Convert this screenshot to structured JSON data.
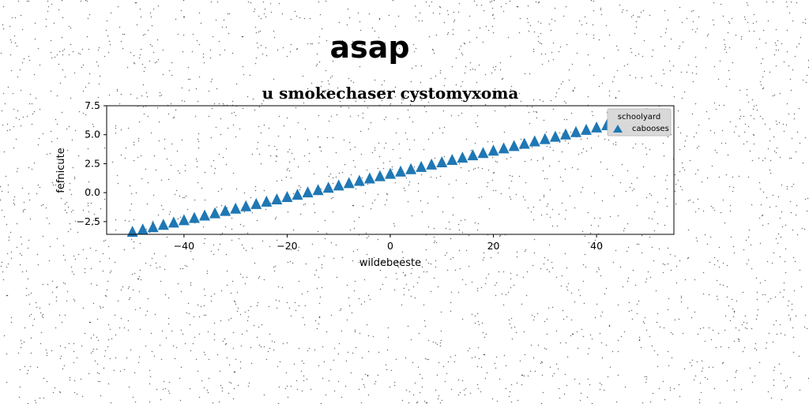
{
  "header": {
    "title": "asap"
  },
  "chart_data": {
    "type": "scatter",
    "title": "u smokechaser cystomyxoma",
    "xlabel": "wildebeeste",
    "ylabel": "fefnicute",
    "xlim": [
      -55,
      55
    ],
    "ylim": [
      -3.6,
      7.5
    ],
    "xticks": [
      -40,
      -20,
      0,
      20,
      40
    ],
    "yticks": [
      -2.5,
      0.0,
      2.5,
      5.0,
      7.5
    ],
    "xtick_labels": [
      "−40",
      "−20",
      "0",
      "20",
      "40"
    ],
    "ytick_labels": [
      "−2.5",
      "0.0",
      "2.5",
      "5.0",
      "7.5"
    ],
    "grid": false,
    "legend": {
      "title": "schoolyard",
      "placement": "top-right"
    },
    "series": [
      {
        "name": "cabooses",
        "marker": "triangle-up",
        "color": "#1f77b4",
        "x": [
          -50,
          -48,
          -46,
          -44,
          -42,
          -40,
          -38,
          -36,
          -34,
          -32,
          -30,
          -28,
          -26,
          -24,
          -22,
          -20,
          -18,
          -16,
          -14,
          -12,
          -10,
          -8,
          -6,
          -4,
          -2,
          0,
          2,
          4,
          6,
          8,
          10,
          12,
          14,
          16,
          18,
          20,
          22,
          24,
          26,
          28,
          30,
          32,
          34,
          36,
          38,
          40,
          42,
          44,
          46,
          48,
          50
        ],
        "y": [
          -3.4,
          -3.2,
          -3.0,
          -2.8,
          -2.6,
          -2.4,
          -2.2,
          -2.0,
          -1.8,
          -1.6,
          -1.4,
          -1.2,
          -1.0,
          -0.8,
          -0.6,
          -0.4,
          -0.2,
          0.0,
          0.2,
          0.4,
          0.6,
          0.8,
          1.0,
          1.2,
          1.4,
          1.6,
          1.8,
          2.0,
          2.2,
          2.4,
          2.6,
          2.8,
          3.0,
          3.2,
          3.4,
          3.6,
          3.8,
          4.0,
          4.2,
          4.4,
          4.6,
          4.8,
          5.0,
          5.2,
          5.4,
          5.6,
          5.8,
          6.0,
          6.2,
          6.4,
          6.6
        ]
      }
    ]
  },
  "colors": {
    "series": "#1f77b4",
    "legend_bg": "#d9d9d9"
  }
}
